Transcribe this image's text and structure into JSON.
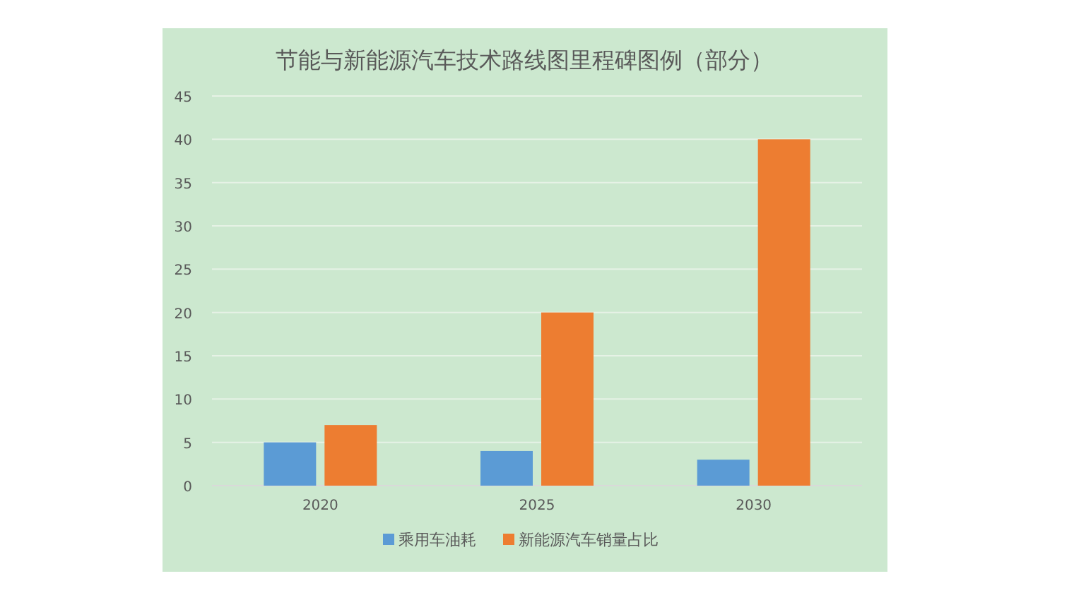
{
  "chart_data": {
    "type": "bar",
    "title": "节能与新能源汽车技术路线图里程碑图例（部分）",
    "categories": [
      "2020",
      "2025",
      "2030"
    ],
    "series": [
      {
        "name": "乘用车油耗",
        "color": "#5b9bd5",
        "values": [
          5,
          4,
          3
        ]
      },
      {
        "name": "新能源汽车销量占比",
        "color": "#ed7d31",
        "values": [
          7,
          20,
          40
        ]
      }
    ],
    "ylim": [
      0,
      45
    ],
    "yticks": [
      0,
      5,
      10,
      15,
      20,
      25,
      30,
      35,
      40,
      45
    ],
    "grid": "y",
    "legend": "bottom"
  }
}
